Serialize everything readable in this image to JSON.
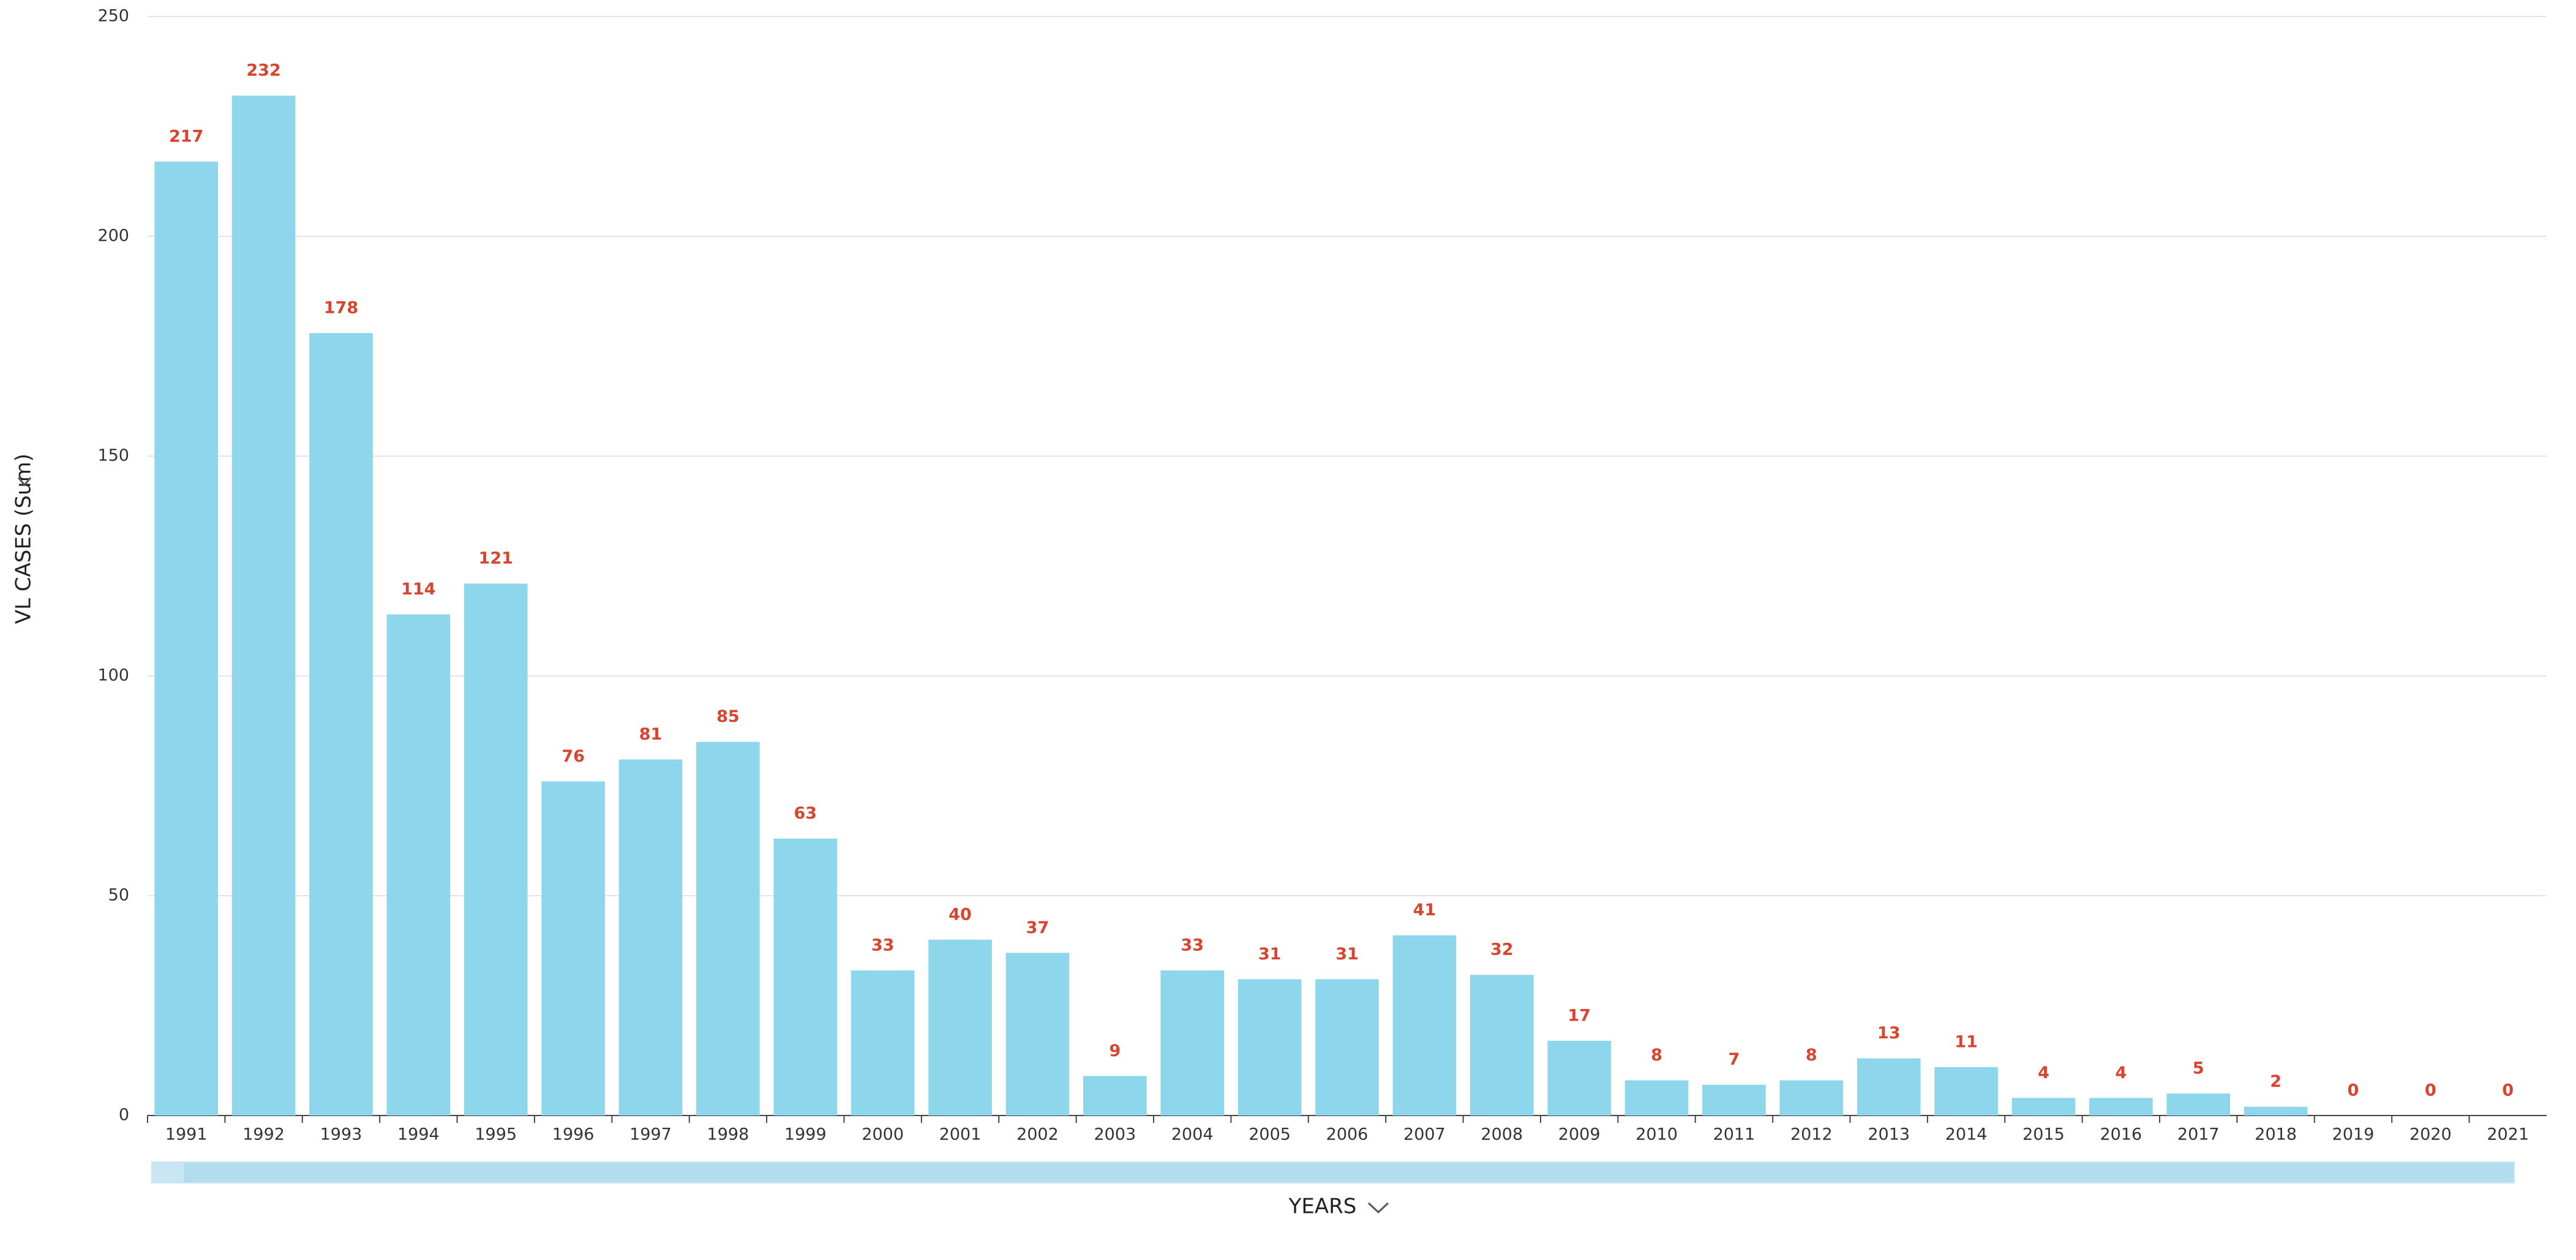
{
  "chart_data": {
    "type": "bar",
    "categories": [
      "1991",
      "1992",
      "1993",
      "1994",
      "1995",
      "1996",
      "1997",
      "1998",
      "1999",
      "2000",
      "2001",
      "2002",
      "2003",
      "2004",
      "2005",
      "2006",
      "2007",
      "2008",
      "2009",
      "2010",
      "2011",
      "2012",
      "2013",
      "2014",
      "2015",
      "2016",
      "2017",
      "2018",
      "2019",
      "2020",
      "2021"
    ],
    "values": [
      217,
      232,
      178,
      114,
      121,
      76,
      81,
      85,
      63,
      33,
      40,
      37,
      9,
      33,
      31,
      31,
      41,
      32,
      17,
      8,
      7,
      8,
      13,
      11,
      4,
      4,
      5,
      2,
      0,
      0,
      0
    ],
    "color": "#8dd6ec",
    "label_color": "#d9442f",
    "x_label": "YEARS",
    "y_label": "VL CASES (Sum)",
    "ylim": [
      0,
      250
    ],
    "yticks": [
      0,
      50,
      100,
      150,
      200,
      250
    ],
    "grid": true
  }
}
